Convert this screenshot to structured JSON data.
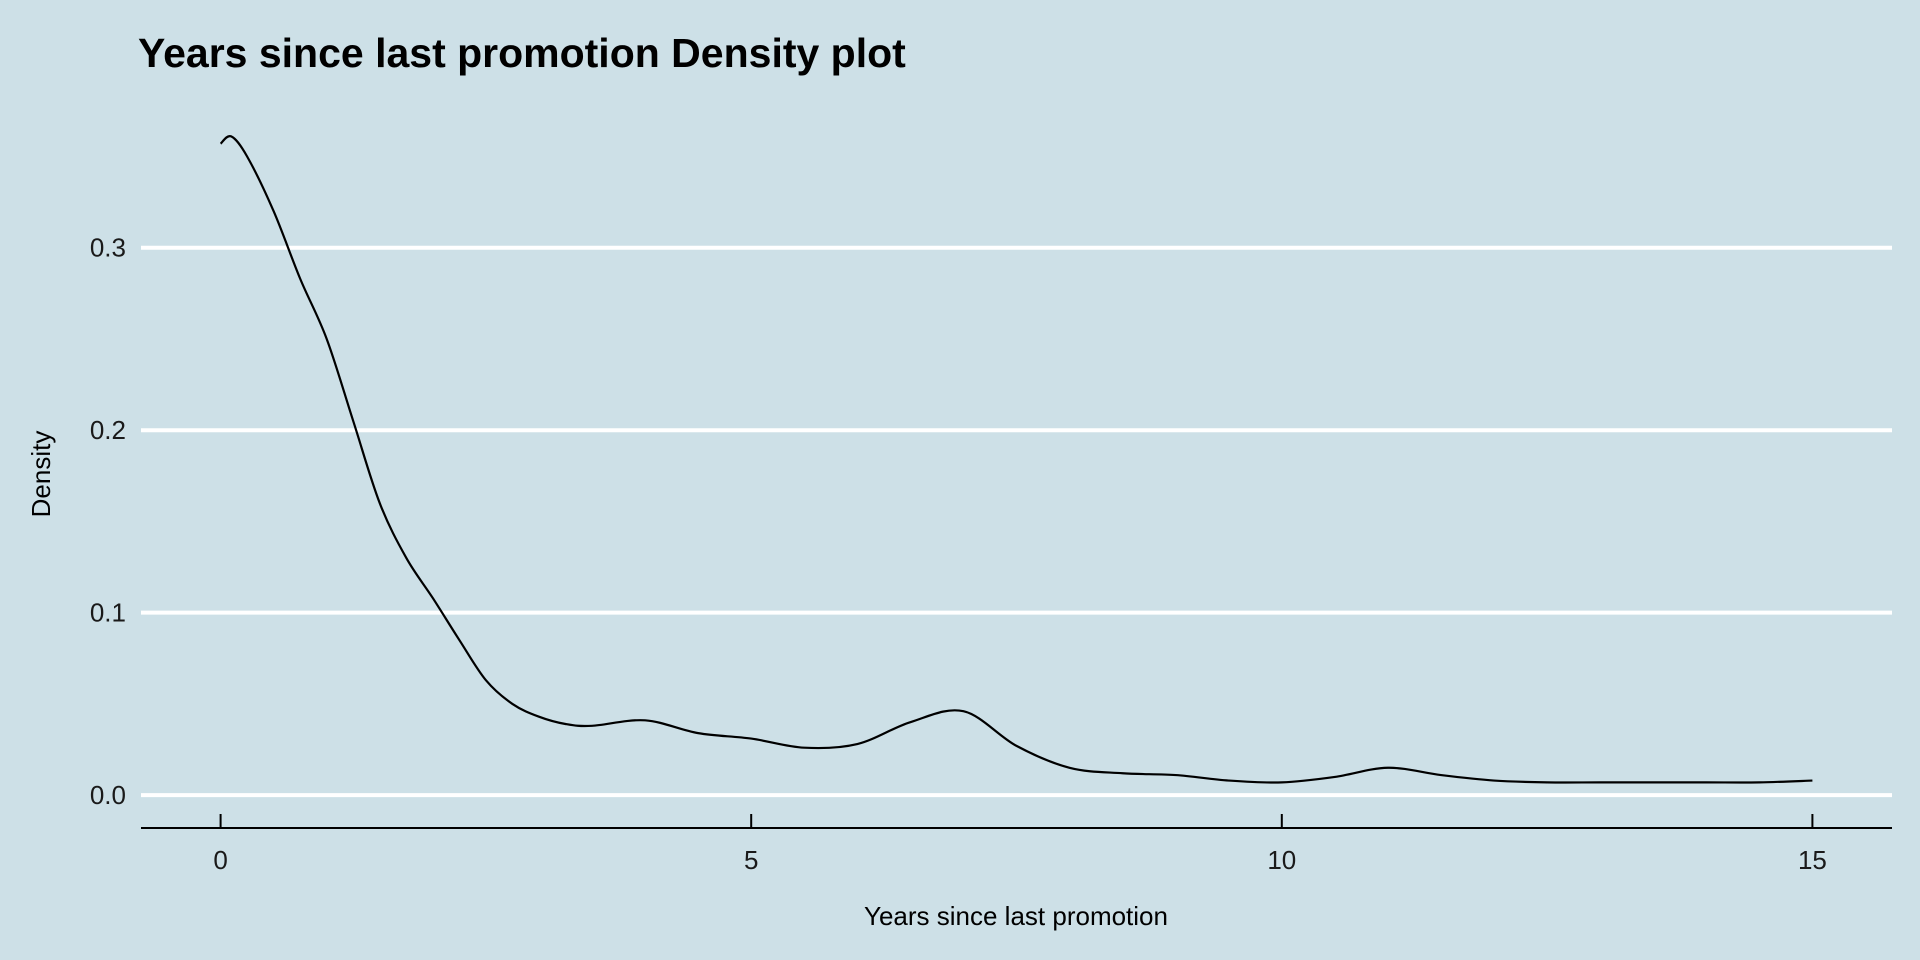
{
  "colors": {
    "background": "#cde0e7",
    "gridline": "#ffffff",
    "line": "#000000"
  },
  "chart_data": {
    "type": "line",
    "title": "Years since last promotion Density plot",
    "xlabel": "Years since last promotion",
    "ylabel": "Density",
    "xlim": [
      -0.75,
      15.75
    ],
    "ylim": [
      -0.018,
      0.37
    ],
    "x_ticks": [
      0,
      5,
      10,
      15
    ],
    "x_tick_labels": [
      "0",
      "5",
      "10",
      "15"
    ],
    "y_ticks": [
      0.0,
      0.1,
      0.2,
      0.3
    ],
    "y_tick_labels": [
      "0.0",
      "0.1",
      "0.2",
      "0.3"
    ],
    "grid": "horizontal-major",
    "legend": "none",
    "series": [
      {
        "x": [
          0,
          0.1,
          0.25,
          0.5,
          0.75,
          1.0,
          1.25,
          1.5,
          1.75,
          2.0,
          2.25,
          2.5,
          2.75,
          3.0,
          3.25,
          3.5,
          4.0,
          4.5,
          5.0,
          5.5,
          6.0,
          6.5,
          7.0,
          7.5,
          8.0,
          8.5,
          9.0,
          9.5,
          10.0,
          10.5,
          11.0,
          11.5,
          12.0,
          12.5,
          13.0,
          13.5,
          14.0,
          14.5,
          15.0
        ],
        "y": [
          0.357,
          0.361,
          0.35,
          0.32,
          0.283,
          0.25,
          0.205,
          0.16,
          0.13,
          0.108,
          0.085,
          0.063,
          0.05,
          0.043,
          0.039,
          0.038,
          0.041,
          0.034,
          0.031,
          0.026,
          0.028,
          0.04,
          0.046,
          0.027,
          0.015,
          0.012,
          0.011,
          0.008,
          0.007,
          0.01,
          0.015,
          0.011,
          0.008,
          0.007,
          0.007,
          0.007,
          0.007,
          0.007,
          0.008
        ]
      }
    ]
  }
}
